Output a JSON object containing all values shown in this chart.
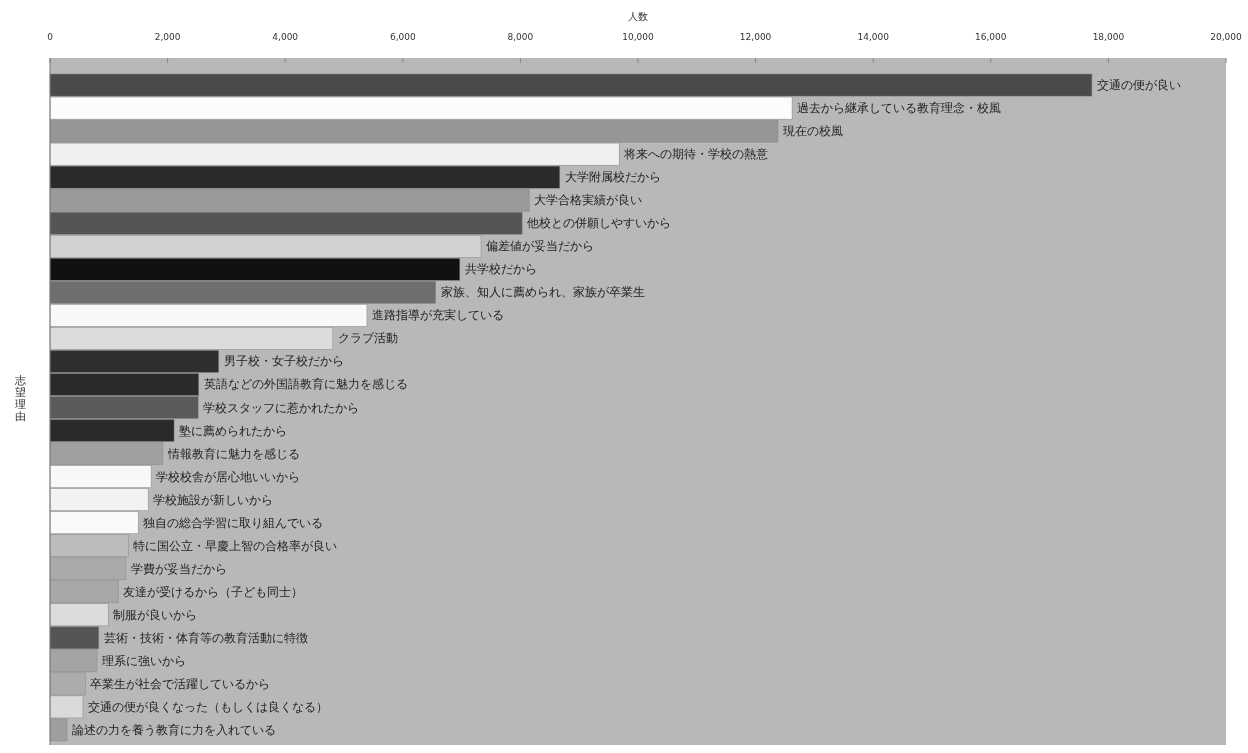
{
  "chart_data": {
    "type": "bar",
    "orientation": "horizontal",
    "xlabel": "人数",
    "ylabel": "志望理由",
    "categories": [
      "交通の便が良い",
      "過去から継承している教育理念・校風",
      "現在の校風",
      "将来への期待・学校の熱意",
      "大学附属校だから",
      "大学合格実績が良い",
      "他校との併願しやすいから",
      "偏差値が妥当だから",
      "共学校だから",
      "家族、知人に薦められ、家族が卒業生",
      "進路指導が充実している",
      "クラブ活動",
      "男子校・女子校だから",
      "英語などの外国語教育に魅力を感じる",
      "学校スタッフに惹かれたから",
      "塾に薦められたから",
      "情報教育に魅力を感じる",
      "学校校舎が居心地いいから",
      "学校施設が新しいから",
      "独自の総合学習に取り組んでいる",
      "特に国公立・早慶上智の合格率が良い",
      "学費が妥当だから",
      "友達が受けるから（子ども同士）",
      "制服が良いから",
      "芸術・技術・体育等の教育活動に特徴",
      "理系に強いから",
      "卒業生が社会で活躍しているから",
      "交通の便が良くなった（もしくは良くなる）",
      "論述の力を養う教育に力を入れている"
    ],
    "values": [
      17720,
      12620,
      12380,
      9680,
      8670,
      8150,
      8030,
      7330,
      6970,
      6560,
      5390,
      4810,
      2870,
      2530,
      2520,
      2110,
      1920,
      1720,
      1670,
      1500,
      1330,
      1290,
      1160,
      990,
      830,
      800,
      600,
      560,
      290
    ],
    "colors": [
      "#4a4a4a",
      "#fcfcfc",
      "#969696",
      "#f0f0f0",
      "#2a2a2a",
      "#9a9a9a",
      "#555555",
      "#d2d2d2",
      "#111111",
      "#6e6e6e",
      "#f8f8f8",
      "#dcdcdc",
      "#2e2e2e",
      "#2a2a2a",
      "#5a5a5a",
      "#2a2a2a",
      "#a0a0a0",
      "#f8f8f8",
      "#f2f2f2",
      "#fafafa",
      "#bcbcbc",
      "#aaaaaa",
      "#a8a8a8",
      "#dcdcdc",
      "#555555",
      "#a4a4a4",
      "#acacac",
      "#dadada",
      "#9e9e9e"
    ],
    "xlim": [
      0,
      20000
    ],
    "xticks": [
      {
        "value": 0,
        "label": "0"
      },
      {
        "value": 2000,
        "label": "2,000"
      },
      {
        "value": 4000,
        "label": "4,000"
      },
      {
        "value": 6000,
        "label": "6,000"
      },
      {
        "value": 8000,
        "label": "8,000"
      },
      {
        "value": 10000,
        "label": "10,000"
      },
      {
        "value": 12000,
        "label": "12,000"
      },
      {
        "value": 14000,
        "label": "14,000"
      },
      {
        "value": 16000,
        "label": "16,000"
      },
      {
        "value": 18000,
        "label": "18,000"
      },
      {
        "value": 20000,
        "label": "20,000"
      }
    ]
  }
}
